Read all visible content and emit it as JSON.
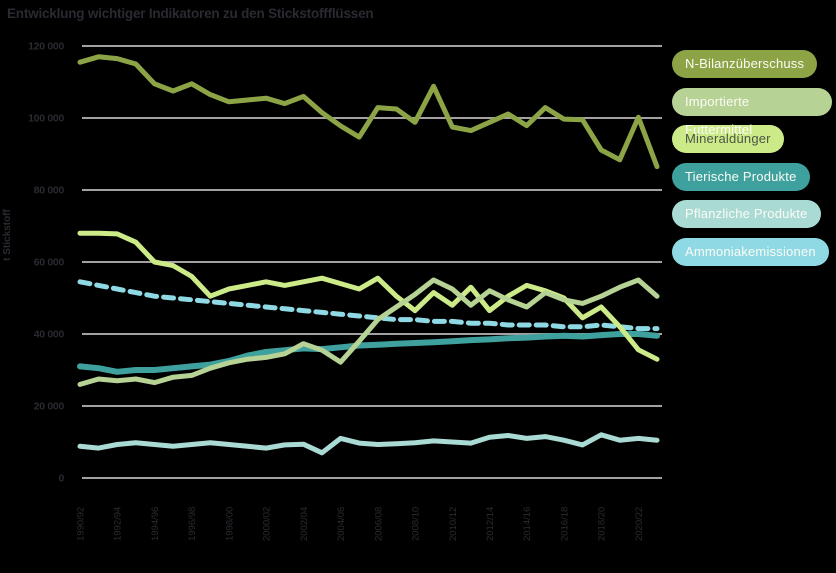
{
  "title": "Entwicklung wichtiger Indikatoren zu den Stickstoffflüssen",
  "colors": {
    "background": "#000000",
    "text": "#2b2931",
    "grid": "#a5a1a2",
    "legend_text_light": "#fbfbf6",
    "legend_text_dark": "#4e5547"
  },
  "chart_data": {
    "type": "line",
    "title": "Entwicklung wichtiger Indikatoren zu den Stickstoffflüssen",
    "xlabel": "",
    "ylabel": "t Stickstoff",
    "ylim": [
      0,
      120000
    ],
    "ytick_step": 20000,
    "ytick_labels": [
      "0",
      "20 000",
      "40 000",
      "60 000",
      "80 000",
      "100 000",
      "120 000"
    ],
    "grid": "horizontal",
    "legend_position": "right",
    "x_labels": [
      "1990/92",
      "1992/94",
      "1994/96",
      "1996/98",
      "1998/00",
      "2000/02",
      "2002/04",
      "2004/06",
      "2006/08",
      "2008/10",
      "2010/12",
      "2012/14",
      "2014/16",
      "2016/18",
      "2018/20",
      "2020/22"
    ],
    "x_label_every": 2,
    "series": [
      {
        "name": "N-Bilanzüberschuss",
        "color": "#8ca445",
        "text_color": "#fbfbf6",
        "width": 5,
        "dashed": false,
        "values": [
          115500,
          117000,
          116500,
          115000,
          109500,
          107500,
          109500,
          106500,
          104500,
          105000,
          105500,
          104000,
          106000,
          101500,
          97800,
          94700,
          102900,
          102500,
          98800,
          108800,
          97500,
          96500,
          98800,
          101100,
          97900,
          102900,
          99700,
          99500,
          91100,
          88400,
          100200,
          86500
        ]
      },
      {
        "name": "Importierte Futtermittel",
        "color": "#b6d294",
        "text_color": "#fbfbf6",
        "width": 5,
        "dashed": false,
        "values": [
          26000,
          27500,
          27000,
          27500,
          26500,
          28000,
          28500,
          30500,
          32000,
          33000,
          33500,
          34500,
          37300,
          35500,
          32200,
          38000,
          44000,
          47500,
          51000,
          55000,
          52500,
          48000,
          52000,
          49500,
          47500,
          51500,
          49500,
          48500,
          50500,
          53000,
          55000,
          50500
        ]
      },
      {
        "name": "Mineraldünger",
        "color": "#cdea89",
        "text_color": "#4e5547",
        "width": 5,
        "dashed": false,
        "values": [
          68000,
          68000,
          67800,
          65500,
          60000,
          59000,
          56000,
          50500,
          52500,
          53500,
          54500,
          53500,
          54500,
          55500,
          54000,
          52500,
          55500,
          50500,
          46500,
          51500,
          48000,
          53000,
          46500,
          50500,
          53500,
          52000,
          50000,
          44500,
          47500,
          42000,
          35600,
          33000
        ]
      },
      {
        "name": "Tierische Produkte",
        "color": "#3ea19e",
        "text_color": "#fbfbf6",
        "width": 6,
        "dashed": false,
        "values": [
          31000,
          30500,
          29500,
          30000,
          30000,
          30500,
          31000,
          31500,
          32500,
          34000,
          35000,
          35500,
          36000,
          35800,
          36300,
          36800,
          37000,
          37300,
          37500,
          37700,
          38000,
          38300,
          38500,
          38800,
          39000,
          39300,
          39500,
          39300,
          39700,
          40000,
          40000,
          39500
        ]
      },
      {
        "name": "Pflanzliche Produkte",
        "color": "#a9dad3",
        "text_color": "#fbfbf6",
        "width": 5,
        "dashed": false,
        "values": [
          8800,
          8300,
          9300,
          9800,
          9300,
          8800,
          9300,
          9800,
          9300,
          8800,
          8300,
          9200,
          9400,
          7000,
          11000,
          9700,
          9300,
          9500,
          9800,
          10300,
          10000,
          9700,
          11300,
          11800,
          11000,
          11500,
          10500,
          9200,
          12000,
          10500,
          11000,
          10500
        ]
      },
      {
        "name": "Ammoniakemissionen",
        "color": "#8ed9e4",
        "text_color": "#fbfbf6",
        "width": 5,
        "dashed": true,
        "values": [
          54500,
          53500,
          52500,
          51500,
          50500,
          50000,
          49500,
          49000,
          48500,
          48000,
          47500,
          47000,
          46500,
          46000,
          45500,
          45000,
          44500,
          44000,
          44000,
          43500,
          43500,
          43000,
          43000,
          42500,
          42500,
          42500,
          42000,
          42000,
          42500,
          42000,
          41500,
          41500
        ]
      }
    ]
  }
}
